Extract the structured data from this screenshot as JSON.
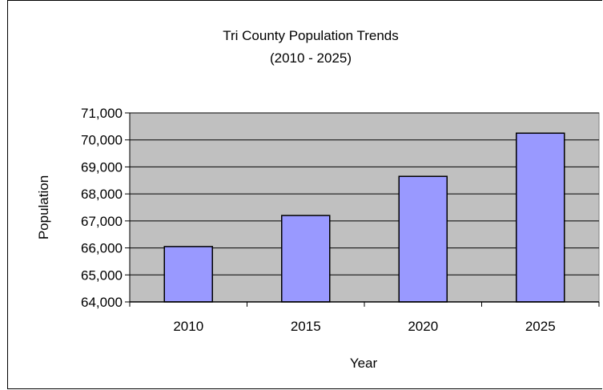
{
  "chart_data": {
    "type": "bar",
    "title": "Tri County Population Trends",
    "subtitle": "(2010 - 2025)",
    "xlabel": "Year",
    "ylabel": "Population",
    "categories": [
      "2010",
      "2015",
      "2020",
      "2025"
    ],
    "values": [
      66050,
      67200,
      68650,
      70250
    ],
    "ylim": [
      64000,
      71000
    ],
    "yticks": [
      64000,
      65000,
      66000,
      67000,
      68000,
      69000,
      70000,
      71000
    ],
    "ytick_labels": [
      "64,000",
      "65,000",
      "66,000",
      "67,000",
      "68,000",
      "69,000",
      "70,000",
      "71,000"
    ],
    "grid": true,
    "legend": "none",
    "colors": {
      "bar_fill": "#9999ff",
      "plot_background": "#c0c0c0",
      "gridline": "#000000"
    }
  }
}
